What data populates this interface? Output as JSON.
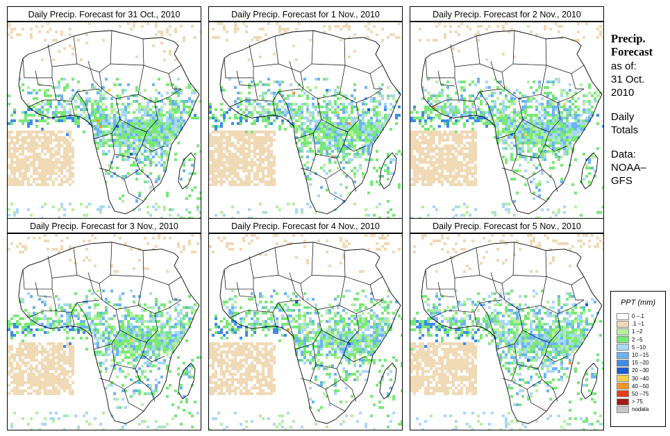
{
  "panels": [
    {
      "title": "Daily Precip. Forecast for  31 Oct., 2010",
      "wet": 1.0,
      "heavy": 0.5
    },
    {
      "title": "Daily Precip. Forecast for  1 Nov., 2010",
      "wet": 0.9,
      "heavy": 1.0
    },
    {
      "title": "Daily Precip. Forecast for  2 Nov., 2010",
      "wet": 0.95,
      "heavy": 0.3
    },
    {
      "title": "Daily Precip. Forecast for  3 Nov., 2010",
      "wet": 0.9,
      "heavy": 0.35
    },
    {
      "title": "Daily Precip. Forecast for  4 Nov., 2010",
      "wet": 0.85,
      "heavy": 0.3
    },
    {
      "title": "Daily Precip. Forecast for  5 Nov., 2010",
      "wet": 0.95,
      "heavy": 0.45
    }
  ],
  "sidebar": {
    "heading1": "Precip.",
    "heading2": "Forecast",
    "asof": "as of:",
    "date1": "31 Oct.",
    "date2": "2010",
    "totals1": "Daily",
    "totals2": "Totals",
    "data1": "Data:",
    "data2": "NOAA–",
    "data3": "GFS"
  },
  "legend": {
    "title": "PPT (mm)",
    "entries": [
      {
        "label": "0 –.1",
        "color": "#ffffff"
      },
      {
        "label": ".1 –1",
        "color": "#f0d9b5"
      },
      {
        "label": "1 –2",
        "color": "#b4f0a0"
      },
      {
        "label": "2 –5",
        "color": "#78e878"
      },
      {
        "label": "5 –10",
        "color": "#a8d8f8"
      },
      {
        "label": "10 –15",
        "color": "#6cb4f0"
      },
      {
        "label": "15 –20",
        "color": "#3c8ce8"
      },
      {
        "label": "20 –30",
        "color": "#1e5ad2"
      },
      {
        "label": "30 –40",
        "color": "#f5d24b"
      },
      {
        "label": "40 –50",
        "color": "#f59628"
      },
      {
        "label": "50 –75",
        "color": "#e63c14"
      },
      {
        "label": "> 75",
        "color": "#a01e14"
      },
      {
        "label": "nodata",
        "color": "#c8c8c8"
      }
    ]
  }
}
